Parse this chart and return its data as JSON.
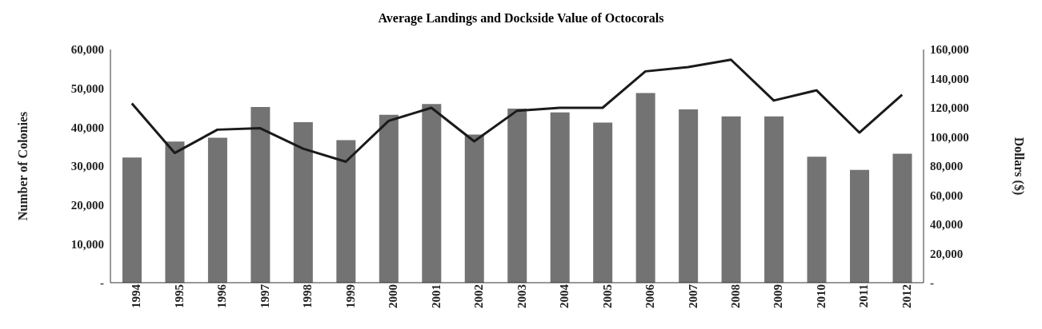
{
  "chart_data": {
    "type": "bar",
    "title": "Average Landings  and Dockside Value of Octocorals",
    "ylabel": "Number of Colonies",
    "y2label": "Dollars ($)",
    "categories": [
      "1994",
      "1995",
      "1996",
      "1997",
      "1998",
      "1999",
      "2000",
      "2001",
      "2002",
      "2003",
      "2004",
      "2005",
      "2006",
      "2007",
      "2008",
      "2009",
      "2010",
      "2011",
      "2012"
    ],
    "series": [
      {
        "color": "#737373",
        "values": [
          32200,
          36300,
          37300,
          45200,
          41300,
          36700,
          43200,
          46000,
          38100,
          44800,
          43800,
          41200,
          48800,
          44600,
          42800,
          42800,
          32400,
          29000,
          33200
        ]
      },
      {
        "type": "line",
        "axis": "y2",
        "color": "#1a1a1a",
        "values": [
          123000,
          89000,
          105000,
          106000,
          92000,
          83000,
          111000,
          120000,
          97000,
          118000,
          120000,
          120000,
          145000,
          148000,
          153000,
          125000,
          132000,
          103000,
          129000
        ]
      }
    ],
    "ylim": [
      0,
      60000
    ],
    "yticks": [
      {
        "value": 0,
        "label": "-"
      },
      {
        "value": 10000,
        "label": "10,000"
      },
      {
        "value": 20000,
        "label": "20,000"
      },
      {
        "value": 30000,
        "label": "30,000"
      },
      {
        "value": 40000,
        "label": "40,000"
      },
      {
        "value": 50000,
        "label": "50,000"
      },
      {
        "value": 60000,
        "label": "60,000"
      }
    ],
    "y2lim": [
      0,
      160000
    ],
    "y2ticks": [
      {
        "value": 0,
        "label": "-"
      },
      {
        "value": 20000,
        "label": "20,000"
      },
      {
        "value": 40000,
        "label": "40,000"
      },
      {
        "value": 60000,
        "label": "60,000"
      },
      {
        "value": 80000,
        "label": "80,000"
      },
      {
        "value": 100000,
        "label": "100,000"
      },
      {
        "value": 120000,
        "label": "120,000"
      },
      {
        "value": 140000,
        "label": "140,000"
      },
      {
        "value": 160000,
        "label": "160,000"
      }
    ],
    "grid": false,
    "legend": false,
    "marker": "none",
    "line_style": "solid"
  }
}
